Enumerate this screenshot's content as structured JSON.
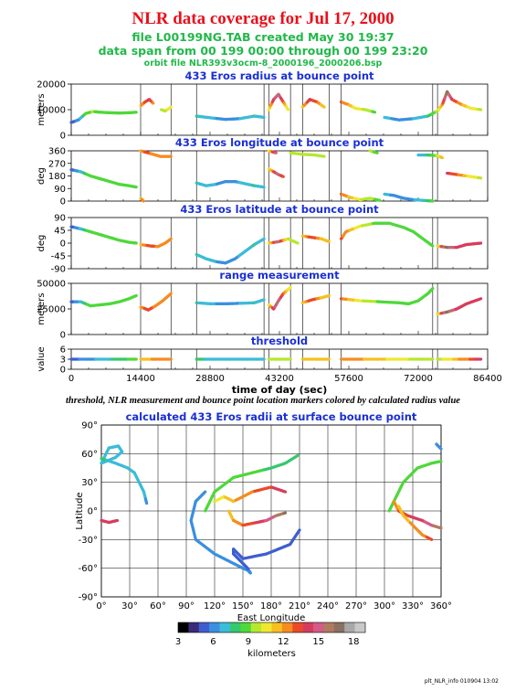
{
  "header": {
    "title": "NLR data coverage for Jul 17, 2000",
    "file_line": "file L00199NG.TAB created May 30 19:37",
    "span_line": "data span from 00 199 00:00 through 00 199 23:20",
    "orbit_line": "orbit file NLR393v3ocm-8_2000196_2000206.bsp"
  },
  "caption": "threshold, NLR measurement and bounce point location markers colored by calculated radius value",
  "footer": "plt_NLR_info 010904 13:02",
  "chart_data": [
    {
      "type": "line",
      "title": "433 Eros radius at bounce point",
      "ylabel": "meters",
      "xlim": [
        0,
        86400
      ],
      "ylim": [
        0,
        20000
      ],
      "yticks": [
        0,
        10000,
        20000
      ],
      "segments": [
        {
          "x": [
            0,
            1500,
            3000,
            4500,
            6000,
            8000,
            10000,
            12000,
            13500
          ],
          "y": [
            5000,
            6000,
            8500,
            9300,
            9000,
            8800,
            8700,
            8800,
            9000
          ]
        },
        {
          "x": [
            14400,
            15300,
            16200,
            17000
          ],
          "y": [
            11500,
            13000,
            14000,
            12500
          ]
        },
        {
          "x": [
            18700,
            19500,
            20700
          ],
          "y": [
            10000,
            9500,
            11000
          ]
        },
        {
          "x": [
            26000,
            29000,
            32000,
            35000,
            38000,
            40000
          ],
          "y": [
            7500,
            6800,
            6200,
            6500,
            7500,
            7000
          ]
        },
        {
          "x": [
            41000,
            42000,
            43000,
            44000,
            45000
          ],
          "y": [
            10000,
            14000,
            16000,
            13000,
            10000
          ]
        },
        {
          "x": [
            48000,
            49500,
            51000,
            52500
          ],
          "y": [
            11000,
            14000,
            13000,
            11000
          ]
        },
        {
          "x": [
            56000,
            57500,
            59000,
            61000,
            63000
          ],
          "y": [
            13000,
            12000,
            10500,
            10000,
            9000
          ]
        },
        {
          "x": [
            65000,
            68000,
            71000,
            74000,
            76000,
            77000,
            78000,
            79000
          ],
          "y": [
            7000,
            6000,
            6500,
            7500,
            9500,
            12000,
            17000,
            14000
          ]
        },
        {
          "x": [
            79000,
            81000,
            83000,
            85000
          ],
          "y": [
            14000,
            12000,
            10500,
            10000
          ]
        }
      ]
    },
    {
      "type": "line",
      "title": "433 Eros longitude at bounce point",
      "ylabel": "deg",
      "xlim": [
        0,
        86400
      ],
      "ylim": [
        0,
        360
      ],
      "yticks": [
        0,
        90,
        180,
        270,
        360
      ],
      "segments": [
        {
          "x": [
            0,
            2000,
            4000,
            6000,
            8000,
            10000,
            12000,
            13500
          ],
          "y": [
            225,
            210,
            180,
            160,
            140,
            120,
            110,
            100
          ]
        },
        {
          "x": [
            14400,
            15500,
            17000,
            18500,
            20700
          ],
          "y": [
            360,
            350,
            335,
            320,
            320
          ]
        },
        {
          "x": [
            14400,
            15000
          ],
          "y": [
            20,
            0
          ]
        },
        {
          "x": [
            26000,
            28000,
            30000,
            32000,
            34000,
            36000,
            38000,
            40000
          ],
          "y": [
            130,
            110,
            120,
            140,
            140,
            125,
            110,
            100
          ]
        },
        {
          "x": [
            41000,
            43000,
            44000
          ],
          "y": [
            230,
            190,
            175
          ]
        },
        {
          "x": [
            41000,
            42500
          ],
          "y": [
            360,
            345
          ]
        },
        {
          "x": [
            45500,
            48000,
            50500,
            52500
          ],
          "y": [
            345,
            335,
            330,
            320
          ]
        },
        {
          "x": [
            56000,
            58000,
            60000,
            62000,
            64000
          ],
          "y": [
            50,
            25,
            10,
            20,
            5
          ]
        },
        {
          "x": [
            62000,
            63500
          ],
          "y": [
            360,
            345
          ]
        },
        {
          "x": [
            65000,
            67000,
            69000,
            71000,
            73000,
            75000
          ],
          "y": [
            50,
            40,
            20,
            10,
            5,
            0
          ]
        },
        {
          "x": [
            72000,
            74000,
            76000,
            77000
          ],
          "y": [
            330,
            330,
            325,
            310
          ]
        },
        {
          "x": [
            78000,
            80000,
            83000,
            85000
          ],
          "y": [
            200,
            190,
            175,
            165
          ]
        }
      ]
    },
    {
      "type": "line",
      "title": "433 Eros latitude at bounce point",
      "ylabel": "deg",
      "xlim": [
        0,
        86400
      ],
      "ylim": [
        -90,
        90
      ],
      "yticks": [
        -90,
        -45,
        0,
        45,
        90
      ],
      "segments": [
        {
          "x": [
            0,
            2000,
            4000,
            6000,
            8000,
            10000,
            12000,
            13500
          ],
          "y": [
            58,
            50,
            40,
            30,
            20,
            10,
            3,
            0
          ]
        },
        {
          "x": [
            14400,
            16500,
            18000,
            19500,
            20700
          ],
          "y": [
            -5,
            -10,
            -12,
            0,
            15
          ]
        },
        {
          "x": [
            26000,
            28000,
            30000,
            32000,
            34000,
            36000,
            38000,
            40000
          ],
          "y": [
            -40,
            -55,
            -65,
            -70,
            -55,
            -30,
            -5,
            15
          ]
        },
        {
          "x": [
            41000,
            43000,
            45000,
            47000
          ],
          "y": [
            0,
            5,
            15,
            0
          ]
        },
        {
          "x": [
            48000,
            50000,
            52000,
            53500
          ],
          "y": [
            25,
            20,
            15,
            5
          ]
        },
        {
          "x": [
            56000,
            57000,
            60000,
            63000,
            66000,
            69000,
            71000,
            73000,
            75000
          ],
          "y": [
            15,
            40,
            60,
            70,
            70,
            55,
            40,
            15,
            -10
          ]
        },
        {
          "x": [
            76000,
            78000,
            80000,
            82000,
            85000
          ],
          "y": [
            -10,
            -15,
            -15,
            -5,
            0
          ]
        }
      ]
    },
    {
      "type": "line",
      "title": "range measurement",
      "ylabel": "meters",
      "xlim": [
        0,
        86400
      ],
      "ylim": [
        0,
        50000
      ],
      "yticks": [
        0,
        25000,
        50000
      ],
      "segments": [
        {
          "x": [
            0,
            2000,
            4000,
            6000,
            8000,
            10000,
            12000,
            13500
          ],
          "y": [
            32000,
            32000,
            28000,
            29000,
            30000,
            32000,
            35000,
            38000
          ]
        },
        {
          "x": [
            14400,
            16000,
            17500,
            19000,
            20700
          ],
          "y": [
            27000,
            24000,
            28000,
            33000,
            40000
          ]
        },
        {
          "x": [
            26000,
            29000,
            32000,
            35000,
            38000,
            40000
          ],
          "y": [
            31000,
            30000,
            30000,
            30500,
            31000,
            34000
          ]
        },
        {
          "x": [
            41000,
            42000,
            43000,
            44000,
            45500
          ],
          "y": [
            29000,
            25000,
            33000,
            40000,
            46000
          ]
        },
        {
          "x": [
            48000,
            50000,
            52000,
            53500
          ],
          "y": [
            31000,
            34000,
            36000,
            38000
          ]
        },
        {
          "x": [
            56000,
            60000,
            64000,
            68000,
            70000,
            72000,
            74000,
            75000
          ],
          "y": [
            35000,
            33000,
            32000,
            31000,
            30000,
            33000,
            40000,
            45000
          ]
        },
        {
          "x": [
            76000,
            78000,
            80000,
            82000,
            85000
          ],
          "y": [
            20000,
            22000,
            25000,
            30000,
            35000
          ]
        }
      ]
    },
    {
      "type": "line",
      "title": "threshold",
      "ylabel": "value",
      "xlabel": "time of day (sec)",
      "xlim": [
        0,
        86400
      ],
      "ylim": [
        0,
        6
      ],
      "yticks": [
        0,
        3,
        6
      ],
      "xticks": [
        0,
        14400,
        28800,
        43200,
        57600,
        72000,
        86400
      ],
      "segments": [
        {
          "x": [
            0,
            13500
          ],
          "y": [
            3,
            3
          ]
        },
        {
          "x": [
            14400,
            20700
          ],
          "y": [
            3,
            3
          ]
        },
        {
          "x": [
            26000,
            40000
          ],
          "y": [
            3,
            3
          ]
        },
        {
          "x": [
            41000,
            45500
          ],
          "y": [
            3,
            3
          ]
        },
        {
          "x": [
            48000,
            53500
          ],
          "y": [
            3,
            3
          ]
        },
        {
          "x": [
            56000,
            75000
          ],
          "y": [
            3,
            3
          ]
        },
        {
          "x": [
            76000,
            85000
          ],
          "y": [
            3,
            3
          ]
        }
      ]
    },
    {
      "type": "line",
      "title": "calculated 433 Eros radii at surface bounce point",
      "xlabel": "East Longitude",
      "ylabel": "Latitude",
      "xlim": [
        0,
        360
      ],
      "ylim": [
        -90,
        90
      ],
      "xticks": [
        0,
        30,
        60,
        90,
        120,
        150,
        180,
        210,
        240,
        270,
        300,
        330,
        360
      ],
      "yticks": [
        -90,
        -60,
        -30,
        0,
        30,
        60,
        90
      ],
      "tick_suffix": "°",
      "segments": [
        {
          "x": [
            0,
            8,
            18,
            22,
            15,
            5,
            0
          ],
          "y": [
            50,
            66,
            68,
            62,
            56,
            52,
            50
          ]
        },
        {
          "x": [
            0,
            15,
            28,
            35,
            40,
            45,
            48
          ],
          "y": [
            55,
            50,
            45,
            40,
            30,
            20,
            8
          ]
        },
        {
          "x": [
            0,
            8,
            17
          ],
          "y": [
            -10,
            -12,
            -10
          ]
        },
        {
          "x": [
            110,
            100,
            95,
            100,
            120,
            140,
            150,
            155,
            158,
            155,
            150,
            140,
            140,
            150,
            175,
            200,
            210
          ],
          "y": [
            20,
            10,
            -10,
            -30,
            -45,
            -55,
            -60,
            -62,
            -65,
            -60,
            -55,
            -45,
            -40,
            -50,
            -45,
            -35,
            -20
          ]
        },
        {
          "x": [
            110,
            115,
            120,
            140,
            160,
            180,
            195,
            208
          ],
          "y": [
            0,
            10,
            20,
            35,
            40,
            45,
            50,
            58
          ]
        },
        {
          "x": [
            120,
            130,
            140,
            160,
            180,
            195
          ],
          "y": [
            10,
            15,
            10,
            20,
            25,
            20
          ]
        },
        {
          "x": [
            135,
            140,
            150,
            165,
            175,
            185,
            195
          ],
          "y": [
            0,
            -10,
            -15,
            -12,
            -10,
            -5,
            -2
          ]
        },
        {
          "x": [
            305,
            310,
            320,
            335,
            350,
            360
          ],
          "y": [
            0,
            10,
            30,
            45,
            50,
            52
          ]
        },
        {
          "x": [
            310,
            315,
            325,
            340,
            350,
            360
          ],
          "y": [
            10,
            0,
            -5,
            -10,
            -15,
            -18
          ]
        },
        {
          "x": [
            315,
            320,
            330,
            340,
            350
          ],
          "y": [
            5,
            -5,
            -15,
            -25,
            -30
          ]
        },
        {
          "x": [
            355,
            360
          ],
          "y": [
            70,
            65
          ]
        }
      ]
    }
  ],
  "colorbar": {
    "label": "kilometers",
    "range": [
      3,
      19
    ],
    "ticks": [
      3,
      6,
      9,
      12,
      15,
      18
    ],
    "colors": [
      "#000000",
      "#3c2a78",
      "#3e5ed0",
      "#3a8fe0",
      "#3bbcd8",
      "#35c86e",
      "#4fd83a",
      "#b6e82e",
      "#f0e830",
      "#f5c020",
      "#f58c20",
      "#ea4a2a",
      "#d83c5c",
      "#d45a88",
      "#b07a60",
      "#8a7060",
      "#a8a8a8",
      "#c8c8c8"
    ]
  }
}
